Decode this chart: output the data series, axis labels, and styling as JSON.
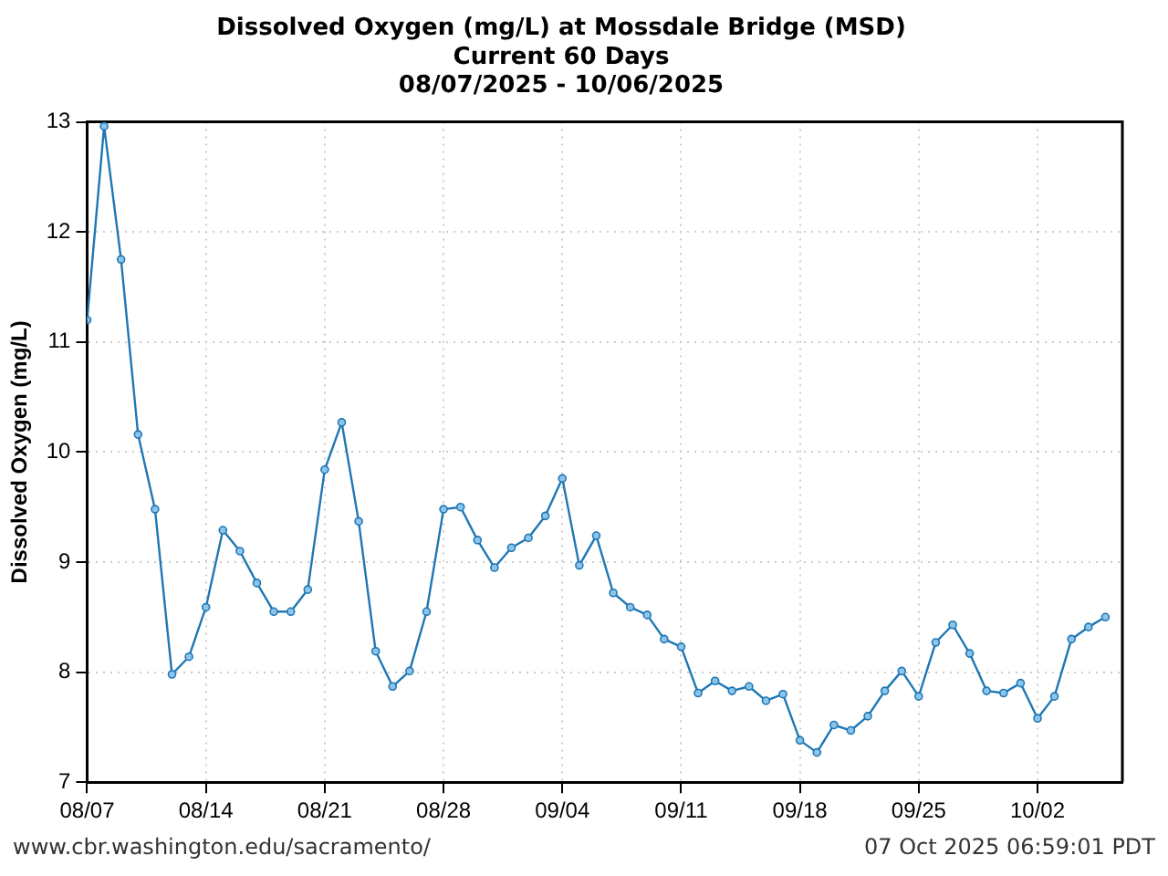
{
  "chart_data": {
    "type": "line",
    "title": "Dissolved Oxygen (mg/L) at Mossdale Bridge (MSD)\nCurrent 60 Days\n08/07/2025 - 10/06/2025",
    "ylabel": "Dissolved Oxygen (mg/L)",
    "x": [
      "2025-08-07",
      "2025-08-08",
      "2025-08-09",
      "2025-08-10",
      "2025-08-11",
      "2025-08-12",
      "2025-08-13",
      "2025-08-14",
      "2025-08-15",
      "2025-08-16",
      "2025-08-17",
      "2025-08-18",
      "2025-08-19",
      "2025-08-20",
      "2025-08-21",
      "2025-08-22",
      "2025-08-23",
      "2025-08-24",
      "2025-08-25",
      "2025-08-26",
      "2025-08-27",
      "2025-08-28",
      "2025-08-29",
      "2025-08-30",
      "2025-08-31",
      "2025-09-01",
      "2025-09-02",
      "2025-09-03",
      "2025-09-04",
      "2025-09-05",
      "2025-09-06",
      "2025-09-07",
      "2025-09-08",
      "2025-09-09",
      "2025-09-10",
      "2025-09-11",
      "2025-09-12",
      "2025-09-13",
      "2025-09-14",
      "2025-09-15",
      "2025-09-16",
      "2025-09-17",
      "2025-09-18",
      "2025-09-19",
      "2025-09-20",
      "2025-09-21",
      "2025-09-22",
      "2025-09-23",
      "2025-09-24",
      "2025-09-25",
      "2025-09-26",
      "2025-09-27",
      "2025-09-28",
      "2025-09-29",
      "2025-09-30",
      "2025-10-01",
      "2025-10-02",
      "2025-10-03",
      "2025-10-04",
      "2025-10-05",
      "2025-10-06"
    ],
    "series": [
      {
        "color": "#1f77b4",
        "values": [
          11.2,
          12.96,
          11.75,
          10.16,
          9.48,
          7.98,
          8.14,
          8.59,
          9.29,
          9.1,
          8.81,
          8.55,
          8.55,
          8.75,
          9.84,
          10.27,
          9.37,
          8.19,
          7.87,
          8.01,
          8.55,
          9.48,
          9.5,
          9.2,
          8.95,
          9.13,
          9.22,
          9.42,
          9.76,
          8.97,
          9.24,
          8.72,
          8.59,
          8.52,
          8.3,
          8.23,
          7.81,
          7.92,
          7.83,
          7.87,
          7.74,
          7.8,
          7.38,
          7.27,
          7.52,
          7.47,
          7.6,
          7.83,
          8.01,
          7.78,
          8.27,
          8.43,
          8.17,
          7.83,
          7.81,
          7.9,
          7.58,
          7.78,
          8.3,
          8.41,
          8.5
        ]
      }
    ],
    "xlim": [
      "2025-08-07",
      "2025-10-07"
    ],
    "xticks": [
      {
        "value": "2025-08-07",
        "label": "08/07"
      },
      {
        "value": "2025-08-14",
        "label": "08/14"
      },
      {
        "value": "2025-08-21",
        "label": "08/21"
      },
      {
        "value": "2025-08-28",
        "label": "08/28"
      },
      {
        "value": "2025-09-04",
        "label": "09/04"
      },
      {
        "value": "2025-09-11",
        "label": "09/11"
      },
      {
        "value": "2025-09-18",
        "label": "09/18"
      },
      {
        "value": "2025-09-25",
        "label": "09/25"
      },
      {
        "value": "2025-10-02",
        "label": "10/02"
      }
    ],
    "ylim": [
      7,
      13
    ],
    "yticks": [
      7,
      8,
      9,
      10,
      11,
      12,
      13
    ],
    "grid": true,
    "legend": false,
    "marker": "circle",
    "line_style": "solid",
    "annotations": [
      "www.cbr.washington.edu/sacramento/",
      "07 Oct 2025 06:59:01 PDT"
    ]
  }
}
